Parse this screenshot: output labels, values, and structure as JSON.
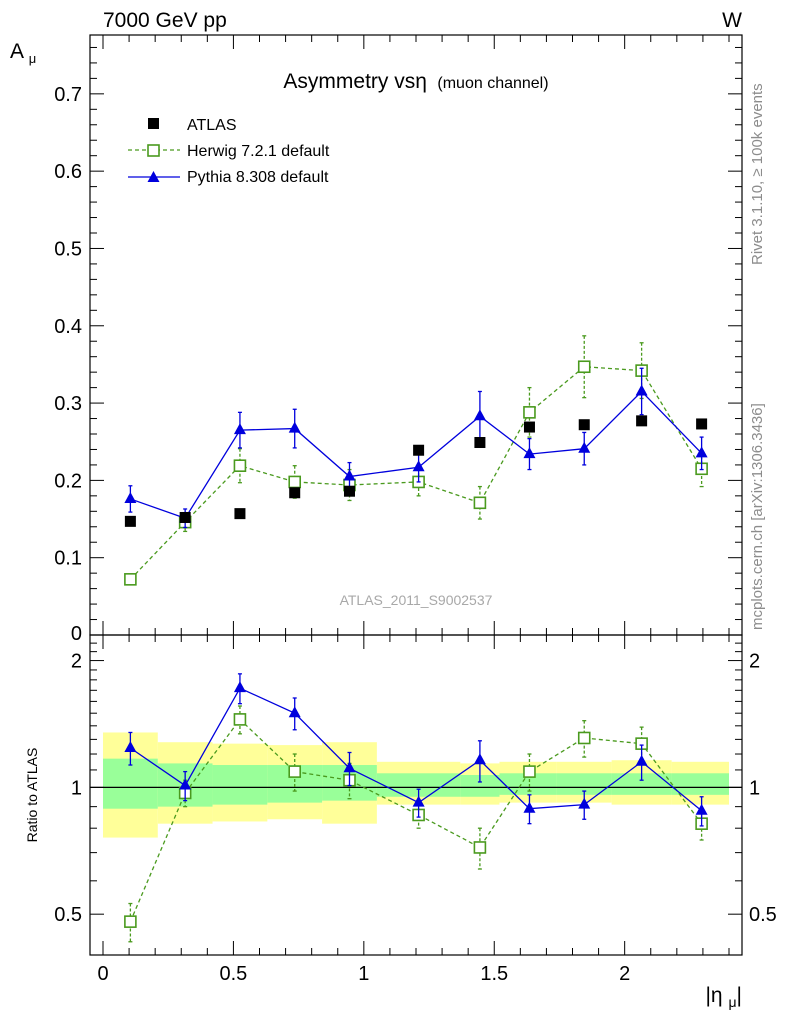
{
  "header": {
    "left": "7000 GeV pp",
    "right": "W"
  },
  "side_labels": {
    "rivet": "Rivet 3.1.10, ≥ 100k events",
    "mcplots": "mcplots.cern.ch [arXiv:1306.3436]"
  },
  "chart_data": {
    "type": "scatter",
    "title_main": "Asymmetry vsη",
    "title_sub": "(muon channel)",
    "analysis_label": "ATLAS_2011_S9002537",
    "xlabel": "|ημ|",
    "ylabel_top": "Aμ",
    "ylabel_bottom": "Ratio to ATLAS",
    "xlim": [
      0,
      2.4
    ],
    "top_ylim": [
      0,
      0.78
    ],
    "bottom_ylim": [
      0.4,
      2.3
    ],
    "bottom_ylog": true,
    "x_ticks": [
      0,
      0.5,
      1,
      1.5,
      2
    ],
    "x_tick_labels": [
      "0",
      "0.5",
      "1",
      "1.5",
      "2"
    ],
    "top_y_ticks": [
      0,
      0.1,
      0.2,
      0.3,
      0.4,
      0.5,
      0.6,
      0.7
    ],
    "top_y_tick_labels": [
      "0",
      "0.1",
      "0.2",
      "0.3",
      "0.4",
      "0.5",
      "0.6",
      "0.7"
    ],
    "bottom_y_ticks": [
      0.5,
      1,
      2
    ],
    "bottom_y_tick_labels": [
      "0.5",
      "1",
      "2"
    ],
    "x": [
      0.105,
      0.315,
      0.525,
      0.735,
      0.945,
      1.21,
      1.445,
      1.635,
      1.845,
      2.065,
      2.295
    ],
    "bin_edges": [
      0,
      0.21,
      0.42,
      0.63,
      0.84,
      1.05,
      1.37,
      1.52,
      1.74,
      1.95,
      2.18,
      2.4
    ],
    "legend_position": "top-left",
    "series": [
      {
        "name": "ATLAS",
        "color": "#000000",
        "marker": "filled-square",
        "line": "none",
        "values": [
          0.147,
          0.152,
          0.157,
          0.184,
          0.186,
          0.239,
          0.249,
          0.269,
          0.272,
          0.277,
          0.273
        ]
      },
      {
        "name": "Herwig 7.2.1 default",
        "color": "#4a9a1e",
        "marker": "open-square",
        "line": "dashed",
        "values": [
          0.072,
          0.146,
          0.219,
          0.198,
          0.194,
          0.198,
          0.171,
          0.288,
          0.347,
          0.342,
          0.215
        ],
        "errors": [
          0.004,
          0.012,
          0.022,
          0.021,
          0.02,
          0.018,
          0.021,
          0.032,
          0.04,
          0.036,
          0.023
        ]
      },
      {
        "name": "Pythia 8.308 default",
        "color": "#0000dd",
        "marker": "filled-triangle",
        "line": "solid",
        "values": [
          0.176,
          0.151,
          0.265,
          0.267,
          0.205,
          0.217,
          0.283,
          0.234,
          0.241,
          0.315,
          0.235
        ],
        "errors": [
          0.017,
          0.012,
          0.023,
          0.025,
          0.018,
          0.019,
          0.032,
          0.02,
          0.021,
          0.03,
          0.021
        ]
      }
    ],
    "ratio_series": [
      {
        "name": "Herwig 7.2.1 default",
        "color": "#4a9a1e",
        "marker": "open-square",
        "line": "dashed",
        "values": [
          0.48,
          0.97,
          1.45,
          1.09,
          1.04,
          0.86,
          0.72,
          1.09,
          1.31,
          1.27,
          0.82
        ],
        "errors": [
          0.05,
          0.07,
          0.11,
          0.11,
          0.1,
          0.06,
          0.08,
          0.11,
          0.13,
          0.12,
          0.07
        ]
      },
      {
        "name": "Pythia 8.308 default",
        "color": "#0000dd",
        "marker": "filled-triangle",
        "line": "solid",
        "values": [
          1.24,
          1.01,
          1.72,
          1.5,
          1.11,
          0.92,
          1.16,
          0.89,
          0.91,
          1.15,
          0.88
        ],
        "errors": [
          0.11,
          0.08,
          0.14,
          0.13,
          0.1,
          0.07,
          0.13,
          0.07,
          0.07,
          0.11,
          0.07
        ]
      }
    ],
    "uncertainty_bands": {
      "inner_color": "#99ff99",
      "outer_color": "#ffff99",
      "inner": [
        [
          0.89,
          1.17
        ],
        [
          0.9,
          1.14
        ],
        [
          0.91,
          1.13
        ],
        [
          0.92,
          1.13
        ],
        [
          0.93,
          1.13
        ],
        [
          0.95,
          1.08
        ],
        [
          0.95,
          1.07
        ],
        [
          0.96,
          1.08
        ],
        [
          0.96,
          1.08
        ],
        [
          0.96,
          1.08
        ],
        [
          0.96,
          1.08
        ]
      ],
      "outer": [
        [
          0.76,
          1.35
        ],
        [
          0.82,
          1.28
        ],
        [
          0.83,
          1.27
        ],
        [
          0.84,
          1.26
        ],
        [
          0.82,
          1.28
        ],
        [
          0.91,
          1.15
        ],
        [
          0.91,
          1.14
        ],
        [
          0.92,
          1.15
        ],
        [
          0.92,
          1.15
        ],
        [
          0.91,
          1.16
        ],
        [
          0.91,
          1.15
        ]
      ]
    }
  }
}
